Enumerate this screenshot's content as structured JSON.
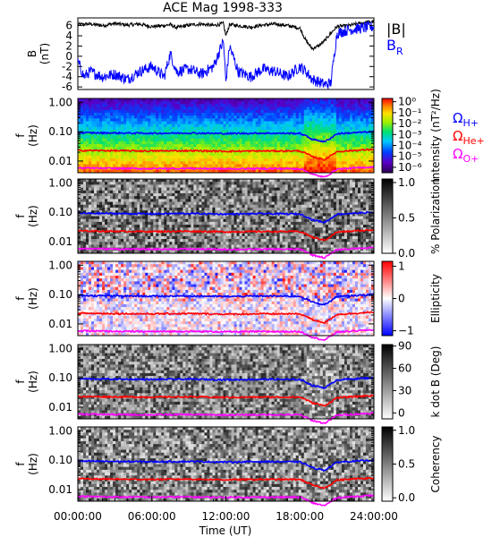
{
  "title": "ACE Mag 1998-333",
  "time_axis": {
    "label": "Time (UT)",
    "ticks": [
      "00:00:00",
      "06:00:00",
      "12:00:00",
      "18:00:00",
      "24:00:00"
    ],
    "hours": [
      0,
      6,
      12,
      18,
      24
    ]
  },
  "panel1": {
    "ylabel_top": "B",
    "ylabel_bottom": "(nT)",
    "yticks": [
      "6",
      "4",
      "2",
      "0",
      "-2",
      "-4",
      "-6"
    ],
    "ytick_values": [
      6,
      4,
      2,
      0,
      -2,
      -4,
      -6
    ],
    "ylim": [
      -6.5,
      7.5
    ],
    "legend_B": "|B|",
    "legend_BR_main": "B",
    "legend_BR_sub": "R",
    "color_B": "#000000",
    "color_BR": "#0000ff"
  },
  "freq_axis": {
    "ylabel_top": "f",
    "ylabel_bottom": "(Hz)",
    "ticks": [
      "1.00",
      "0.10",
      "0.01"
    ],
    "tick_values": [
      1.0,
      0.1,
      0.01
    ],
    "ylim": [
      0.004,
      1.35
    ]
  },
  "gyro_legend": [
    {
      "base": "Ω",
      "sub": "H+",
      "color": "#0000ff"
    },
    {
      "base": "Ω",
      "sub": "He+",
      "color": "#ff0000"
    },
    {
      "base": "Ω",
      "sub": "O+",
      "color": "#ff00ff"
    }
  ],
  "colorbars": [
    {
      "label": "Intensity (nT²/Hz)",
      "ticks": [
        "10⁰",
        "10⁻¹",
        "10⁻²",
        "10⁻³",
        "10⁻⁴",
        "10⁻⁵",
        "10⁻⁶"
      ],
      "tick_values": [
        0,
        -1,
        -2,
        -3,
        -4,
        -5,
        -6
      ],
      "range": [
        -6.5,
        0.3
      ]
    },
    {
      "label": "% Polarization",
      "ticks": [
        "1.0",
        "0.5",
        "0.0"
      ],
      "tick_values": [
        1.0,
        0.5,
        0.0
      ],
      "range": [
        0,
        1.05
      ]
    },
    {
      "label": "Ellipticity",
      "ticks": [
        "1",
        "0",
        "−1"
      ],
      "tick_values": [
        1,
        0,
        -1
      ],
      "range": [
        -1.15,
        1.15
      ]
    },
    {
      "label": "k dot B (Deg)",
      "ticks": [
        "90",
        "60",
        "30",
        "0"
      ],
      "tick_values": [
        90,
        60,
        30,
        0
      ],
      "range": [
        -8,
        92
      ]
    },
    {
      "label": "Coherency",
      "ticks": [
        "1.0",
        "0.5",
        "0.0"
      ],
      "tick_values": [
        1.0,
        0.5,
        0.0
      ],
      "range": [
        -0.05,
        1.05
      ]
    }
  ],
  "chart_data": [
    {
      "type": "line",
      "title": "ACE Mag 1998-333",
      "xlabel": "",
      "ylabel": "B (nT)",
      "xlim": [
        0,
        24
      ],
      "ylim": [
        -6.5,
        7.5
      ],
      "series": [
        {
          "name": "|B|",
          "x": [
            0,
            1,
            2,
            3,
            4,
            5,
            6,
            7,
            7.5,
            8,
            9,
            10,
            11,
            11.8,
            12,
            12.3,
            13,
            14,
            15,
            16,
            17,
            18,
            18.5,
            19,
            19.5,
            20,
            20.5,
            21,
            22,
            23,
            24
          ],
          "y": [
            6.2,
            6.3,
            6.0,
            6.4,
            6.1,
            6.3,
            5.8,
            6.0,
            6.2,
            5.6,
            6.1,
            6.3,
            6.0,
            6.4,
            4.0,
            6.2,
            6.0,
            5.7,
            6.1,
            6.3,
            6.0,
            5.5,
            3.0,
            1.5,
            2.0,
            3.0,
            4.5,
            5.8,
            6.0,
            6.5,
            6.8
          ]
        },
        {
          "name": "BR",
          "x": [
            0,
            0.5,
            1,
            2,
            3,
            4,
            5,
            6,
            7,
            7.5,
            8,
            9,
            10,
            11,
            11.8,
            12,
            12.3,
            13,
            14,
            15,
            16,
            17,
            18,
            18.5,
            19,
            19.5,
            20,
            20.5,
            21,
            22,
            23,
            24
          ],
          "y": [
            -1,
            -4,
            -3,
            -4,
            -3.5,
            -4.5,
            -3,
            -2,
            -4,
            0.5,
            -3,
            -2.5,
            -3.5,
            -2,
            3,
            -5,
            2,
            -3,
            -4,
            -2.5,
            -3,
            -4,
            -2,
            -3,
            -4.5,
            -5,
            -5.5,
            -5.3,
            4.5,
            5.2,
            5.5,
            5.8
          ]
        }
      ]
    },
    {
      "type": "heatmap",
      "ylabel": "f (Hz)",
      "colorbar": "Intensity (nT²/Hz)",
      "series": [
        {
          "name": "ΩH+",
          "x": [
            0,
            3,
            6,
            9,
            12,
            15,
            18,
            19,
            20,
            20.5,
            21,
            24
          ],
          "y": [
            0.092,
            0.09,
            0.088,
            0.09,
            0.086,
            0.089,
            0.087,
            0.055,
            0.045,
            0.06,
            0.085,
            0.1
          ]
        },
        {
          "name": "ΩHe+",
          "x": [
            0,
            3,
            6,
            9,
            12,
            15,
            18,
            19,
            20,
            20.5,
            21,
            24
          ],
          "y": [
            0.023,
            0.0225,
            0.022,
            0.0225,
            0.0215,
            0.022,
            0.022,
            0.014,
            0.011,
            0.015,
            0.021,
            0.025
          ]
        },
        {
          "name": "ΩO+",
          "x": [
            0,
            3,
            6,
            9,
            12,
            15,
            18,
            19,
            20,
            20.5,
            21,
            24
          ],
          "y": [
            0.0058,
            0.0056,
            0.0055,
            0.0056,
            0.0054,
            0.0055,
            0.0055,
            0.0035,
            0.0028,
            0.0038,
            0.0053,
            0.0063
          ]
        }
      ]
    },
    {
      "type": "heatmap",
      "ylabel": "f (Hz)",
      "colorbar": "% Polarization"
    },
    {
      "type": "heatmap",
      "ylabel": "f (Hz)",
      "colorbar": "Ellipticity"
    },
    {
      "type": "heatmap",
      "ylabel": "f (Hz)",
      "colorbar": "k dot B (Deg)"
    },
    {
      "type": "heatmap",
      "ylabel": "f (Hz)",
      "colorbar": "Coherency"
    }
  ]
}
